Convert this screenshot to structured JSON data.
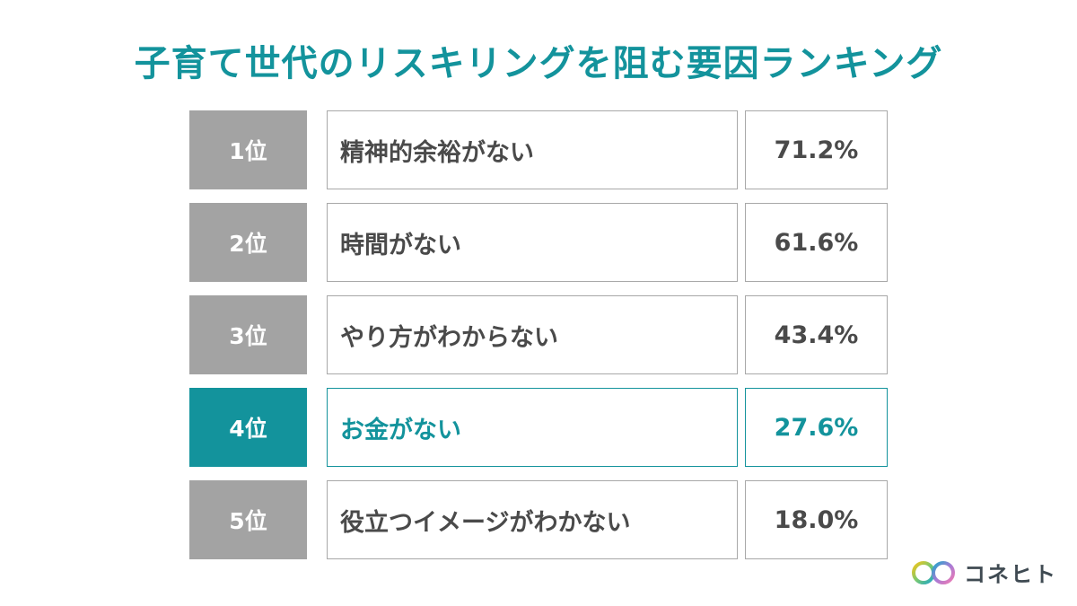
{
  "colors": {
    "accent": "#13939c",
    "rank_bg": "#a3a3a3",
    "text": "#4a4a4a",
    "border": "#a8a8a8"
  },
  "chart_data": {
    "type": "table",
    "title": "子育て世代のリスキリングを阻む要因ランキング",
    "highlight_index": 3,
    "rows": [
      {
        "rank": "1位",
        "label": "精神的余裕がない",
        "value": "71.2%"
      },
      {
        "rank": "2位",
        "label": "時間がない",
        "value": "61.6%"
      },
      {
        "rank": "3位",
        "label": "やり方がわからない",
        "value": "43.4%"
      },
      {
        "rank": "4位",
        "label": "お金がない",
        "value": "27.6%"
      },
      {
        "rank": "5位",
        "label": "役立つイメージがわかない",
        "value": "18.0%"
      }
    ]
  },
  "logo": {
    "text": "コネヒト"
  }
}
